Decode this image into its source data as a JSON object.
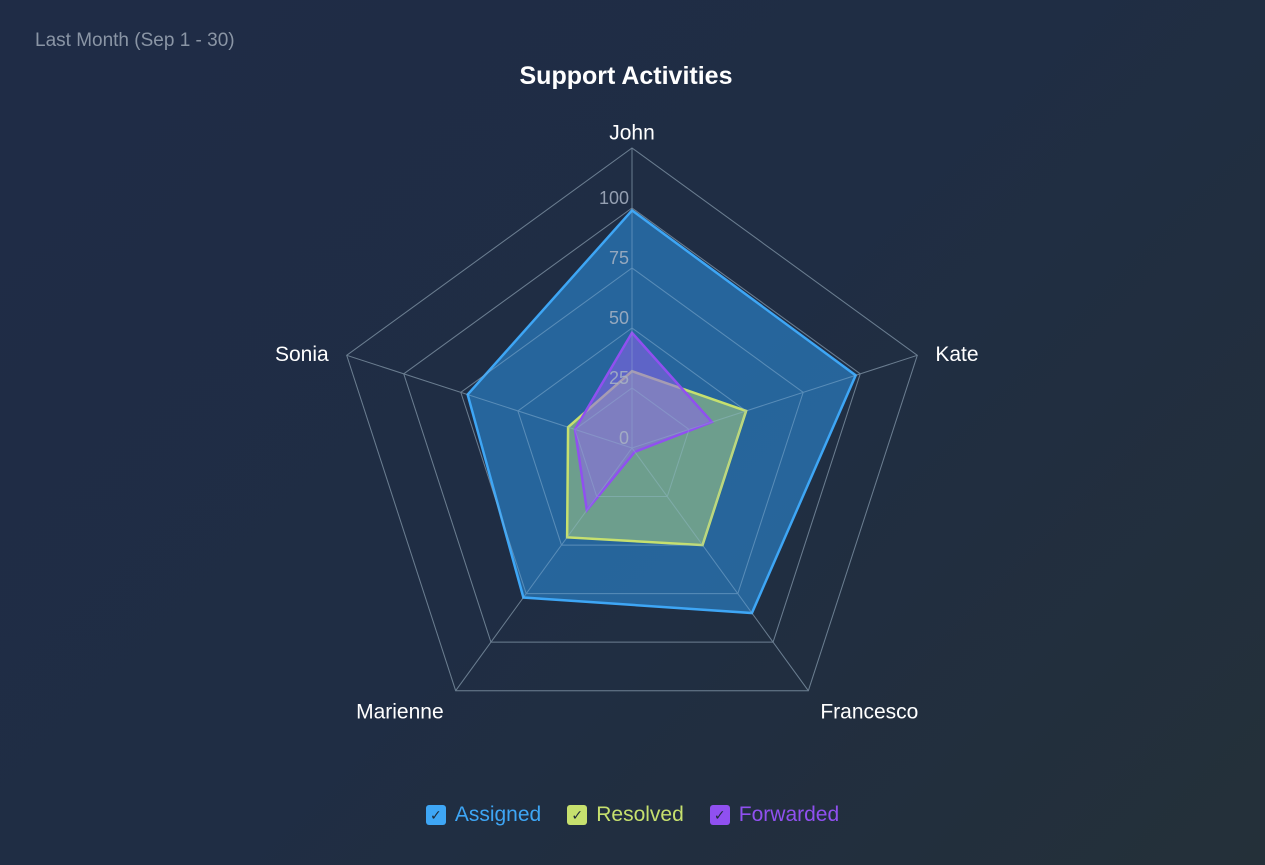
{
  "header": {
    "period": "Last Month (Sep 1 - 30)",
    "title": "Support Activities"
  },
  "chart_data": {
    "type": "radar",
    "title": "Support Activities",
    "subtitle": "Last Month (Sep 1 - 30)",
    "categories": [
      "John",
      "Kate",
      "Francesco",
      "Marienne",
      "Sonia"
    ],
    "scale": {
      "min": 0,
      "max": 125,
      "ticks": [
        0,
        25,
        50,
        75,
        100
      ],
      "grid_rings": 5
    },
    "series": [
      {
        "name": "Assigned",
        "color": "#3ea6f5",
        "fill": "rgba(44,135,210,0.62)",
        "values": [
          99,
          98,
          85,
          77,
          72
        ]
      },
      {
        "name": "Resolved",
        "color": "#c6e06e",
        "fill": "rgba(168,206,130,0.55)",
        "values": [
          32,
          50,
          50,
          46,
          28
        ]
      },
      {
        "name": "Forwarded",
        "color": "#9050f0",
        "fill": "rgba(140,100,235,0.55)",
        "values": [
          48,
          35,
          2,
          32,
          25
        ]
      }
    ],
    "legend_position": "bottom"
  },
  "legend": [
    {
      "label": "Assigned",
      "color": "#3ea6f5",
      "checked": true,
      "check": "✓"
    },
    {
      "label": "Resolved",
      "color": "#c6e06e",
      "checked": true,
      "check": "✓"
    },
    {
      "label": "Forwarded",
      "color": "#9050f0",
      "checked": true,
      "check": "✓"
    }
  ]
}
